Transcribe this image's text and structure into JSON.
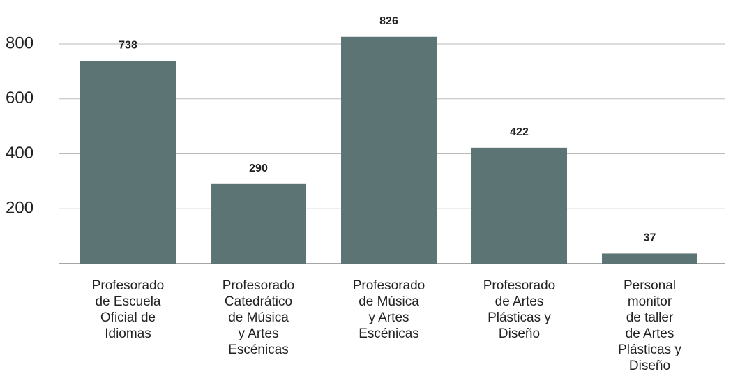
{
  "chart_data": {
    "type": "bar",
    "categories": [
      "Profesorado\nde Escuela\nOficial de\nIdiomas",
      "Profesorado\nCatedrático\nde Música\ny Artes\nEscénicas",
      "Profesorado\nde Música\ny Artes\nEscénicas",
      "Profesorado\nde Artes\nPlásticas y\nDiseño",
      "Personal\nmonitor\nde taller\nde Artes\nPlásticas y\nDiseño"
    ],
    "values": [
      738,
      290,
      826,
      422,
      37
    ],
    "color": "#5c7574",
    "ylim": [
      0,
      960
    ],
    "yticks": [
      200,
      400,
      600,
      800
    ],
    "grid": true
  }
}
